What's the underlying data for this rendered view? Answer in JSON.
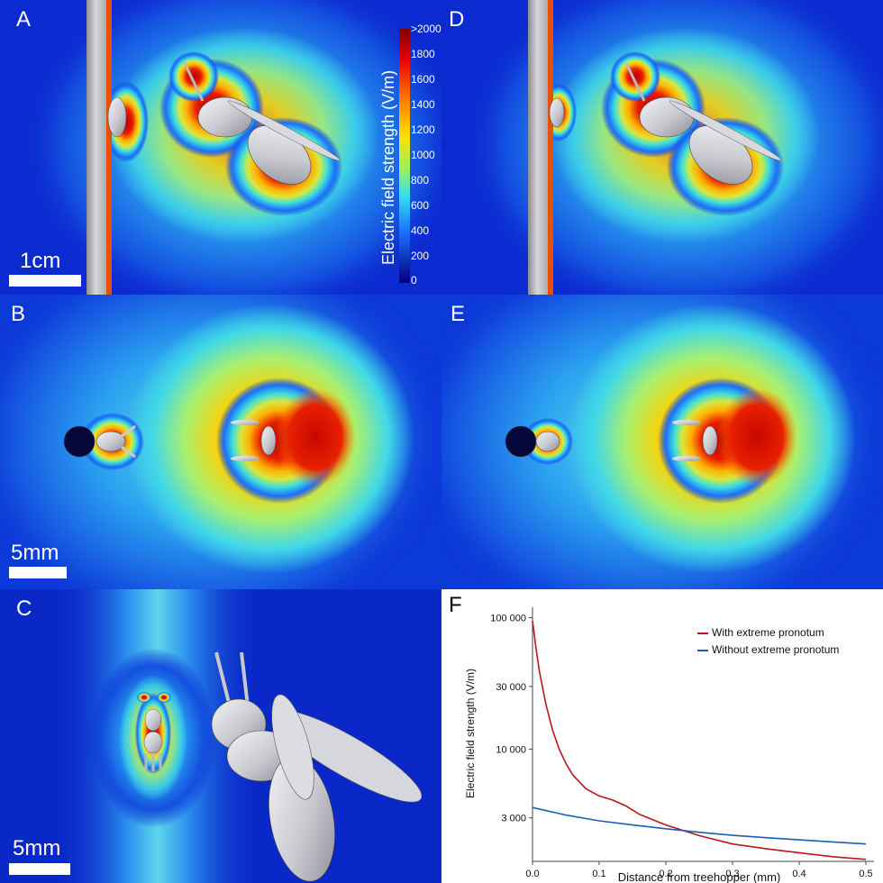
{
  "panels": {
    "A": {
      "label": "A",
      "scale": "1cm"
    },
    "B": {
      "label": "B",
      "scale": "5mm"
    },
    "C": {
      "label": "C",
      "scale": "5mm"
    },
    "D": {
      "label": "D"
    },
    "E": {
      "label": "E"
    },
    "F": {
      "label": "F"
    }
  },
  "colorbar": {
    "title": "Electric field strength (V/m)",
    "ticks": [
      ">2000",
      "1800",
      "1600",
      "1400",
      "1200",
      "1000",
      "800",
      "600",
      "400",
      "200",
      "0"
    ]
  },
  "chart_data": {
    "type": "line",
    "xlabel": "Distance from treehopper (mm)",
    "ylabel": "Electric field strength (V/m)",
    "x_ticks": [
      "0.0",
      "0.1",
      "0.2",
      "0.3",
      "0.4",
      "0.5"
    ],
    "y_ticks": [
      "3 000",
      "10 000",
      "30 000",
      "100 000"
    ],
    "y_scale": "log",
    "xlim": [
      0,
      0.5
    ],
    "ylim": [
      1400,
      120000
    ],
    "legend_position": "top-right",
    "series": [
      {
        "name": "With extreme pronotum",
        "color": "#c0141c",
        "x": [
          0.0,
          0.005,
          0.01,
          0.02,
          0.03,
          0.04,
          0.05,
          0.06,
          0.08,
          0.1,
          0.12,
          0.14,
          0.16,
          0.2,
          0.25,
          0.3,
          0.35,
          0.4,
          0.45,
          0.5
        ],
        "y": [
          95000,
          60000,
          40000,
          22000,
          14000,
          10000,
          7800,
          6400,
          5000,
          4400,
          4100,
          3700,
          3200,
          2650,
          2200,
          1900,
          1750,
          1630,
          1520,
          1450
        ]
      },
      {
        "name": "Without extreme pronotum",
        "color": "#1a5fb4",
        "x": [
          0.0,
          0.05,
          0.1,
          0.15,
          0.2,
          0.25,
          0.3,
          0.35,
          0.4,
          0.45,
          0.5
        ],
        "y": [
          3600,
          3150,
          2850,
          2650,
          2480,
          2330,
          2210,
          2120,
          2040,
          1970,
          1900
        ]
      }
    ]
  }
}
